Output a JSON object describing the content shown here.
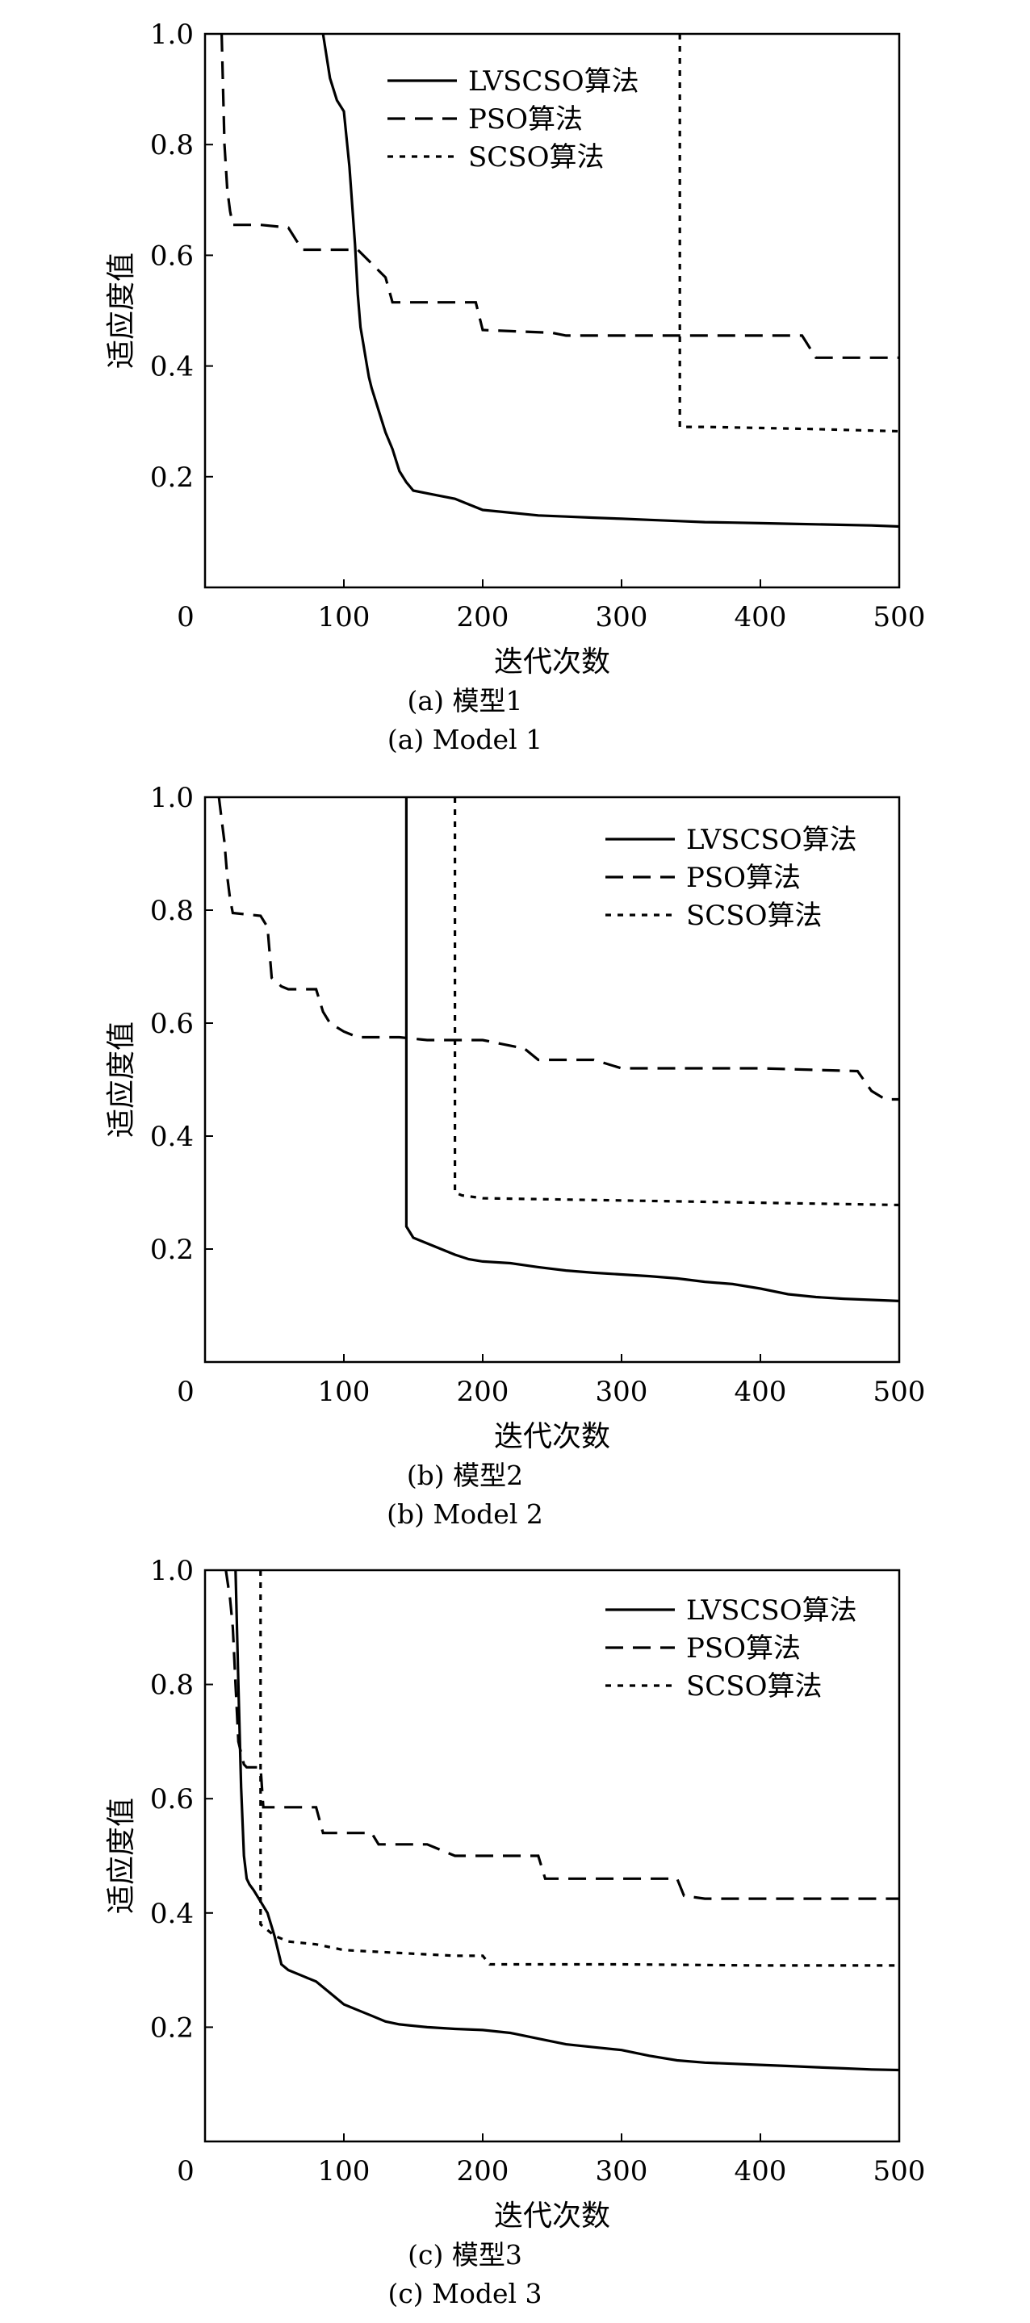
{
  "chart_data": [
    {
      "type": "line",
      "xlabel": "迭代次数",
      "ylabel": "适应度值",
      "caption_cn": "(a) 模型1",
      "caption_en": "(a) Model 1",
      "xlim": [
        0,
        500
      ],
      "ylim": [
        0,
        1.0
      ],
      "xticks": [
        0,
        100,
        200,
        300,
        400,
        500
      ],
      "yticks": [
        0.2,
        0.4,
        0.6,
        0.8,
        1.0
      ],
      "legend": "top-right",
      "series": [
        {
          "name": "LVSCSO算法",
          "style": "solid",
          "x": [
            85,
            90,
            95,
            100,
            104,
            108,
            110,
            112,
            114,
            116,
            118,
            120,
            125,
            130,
            135,
            140,
            145,
            150,
            160,
            170,
            180,
            190,
            200,
            220,
            240,
            260,
            280,
            300,
            320,
            340,
            360,
            380,
            400,
            420,
            440,
            460,
            480,
            500
          ],
          "y": [
            1.0,
            0.92,
            0.88,
            0.86,
            0.76,
            0.62,
            0.53,
            0.47,
            0.44,
            0.41,
            0.38,
            0.36,
            0.32,
            0.28,
            0.25,
            0.21,
            0.19,
            0.175,
            0.17,
            0.165,
            0.16,
            0.15,
            0.14,
            0.135,
            0.13,
            0.128,
            0.126,
            0.124,
            0.122,
            0.12,
            0.118,
            0.117,
            0.116,
            0.115,
            0.114,
            0.113,
            0.112,
            0.11
          ]
        },
        {
          "name": "PSO算法",
          "style": "dashed",
          "x": [
            12,
            14,
            16,
            18,
            20,
            40,
            60,
            70,
            110,
            130,
            135,
            150,
            170,
            195,
            200,
            250,
            260,
            430,
            440,
            500
          ],
          "y": [
            1.0,
            0.8,
            0.72,
            0.68,
            0.655,
            0.655,
            0.65,
            0.61,
            0.61,
            0.56,
            0.515,
            0.515,
            0.515,
            0.515,
            0.465,
            0.46,
            0.455,
            0.455,
            0.415,
            0.415
          ]
        },
        {
          "name": "SCSO算法",
          "style": "dotted",
          "x": [
            342,
            342,
            360,
            400,
            440,
            470,
            500
          ],
          "y": [
            1.0,
            0.29,
            0.29,
            0.288,
            0.286,
            0.284,
            0.282
          ]
        }
      ]
    },
    {
      "type": "line",
      "xlabel": "迭代次数",
      "ylabel": "适应度值",
      "caption_cn": "(b) 模型2",
      "caption_en": "(b) Model 2",
      "xlim": [
        0,
        500
      ],
      "ylim": [
        0,
        1.0
      ],
      "xticks": [
        0,
        100,
        200,
        300,
        400,
        500
      ],
      "yticks": [
        0.2,
        0.4,
        0.6,
        0.8,
        1.0
      ],
      "legend": "top-right",
      "series": [
        {
          "name": "LVSCSO算法",
          "style": "solid",
          "x": [
            145,
            145,
            150,
            160,
            170,
            180,
            190,
            200,
            220,
            240,
            260,
            280,
            300,
            320,
            340,
            360,
            380,
            400,
            420,
            440,
            460,
            480,
            500
          ],
          "y": [
            1.0,
            0.24,
            0.22,
            0.21,
            0.2,
            0.19,
            0.182,
            0.178,
            0.175,
            0.168,
            0.162,
            0.158,
            0.155,
            0.152,
            0.148,
            0.142,
            0.138,
            0.13,
            0.12,
            0.115,
            0.112,
            0.11,
            0.108
          ]
        },
        {
          "name": "PSO算法",
          "style": "dashed",
          "x": [
            10,
            12,
            14,
            16,
            18,
            20,
            40,
            45,
            48,
            55,
            60,
            80,
            85,
            90,
            100,
            110,
            140,
            160,
            200,
            230,
            240,
            280,
            300,
            400,
            470,
            480,
            490,
            500
          ],
          "y": [
            1.0,
            0.96,
            0.92,
            0.86,
            0.82,
            0.795,
            0.79,
            0.77,
            0.68,
            0.665,
            0.66,
            0.66,
            0.62,
            0.6,
            0.585,
            0.575,
            0.575,
            0.57,
            0.57,
            0.555,
            0.535,
            0.535,
            0.52,
            0.52,
            0.515,
            0.48,
            0.465,
            0.465
          ]
        },
        {
          "name": "SCSO算法",
          "style": "dotted",
          "x": [
            180,
            180,
            185,
            200,
            250,
            300,
            350,
            400,
            450,
            500
          ],
          "y": [
            1.0,
            0.3,
            0.295,
            0.29,
            0.288,
            0.286,
            0.284,
            0.282,
            0.28,
            0.278
          ]
        }
      ]
    },
    {
      "type": "line",
      "xlabel": "迭代次数",
      "ylabel": "适应度值",
      "caption_cn": "(c) 模型3",
      "caption_en": "(c) Model 3",
      "xlim": [
        0,
        500
      ],
      "ylim": [
        0,
        1.0
      ],
      "xticks": [
        0,
        100,
        200,
        300,
        400,
        500
      ],
      "yticks": [
        0.2,
        0.4,
        0.6,
        0.8,
        1.0
      ],
      "legend": "top-right",
      "series": [
        {
          "name": "LVSCSO算法",
          "style": "solid",
          "x": [
            22,
            24,
            26,
            28,
            30,
            32,
            35,
            40,
            45,
            50,
            55,
            60,
            70,
            80,
            90,
            100,
            110,
            120,
            130,
            140,
            160,
            180,
            200,
            220,
            240,
            260,
            280,
            300,
            320,
            340,
            360,
            380,
            400,
            420,
            440,
            460,
            480,
            500
          ],
          "y": [
            1.0,
            0.8,
            0.62,
            0.5,
            0.46,
            0.45,
            0.44,
            0.42,
            0.4,
            0.36,
            0.31,
            0.3,
            0.29,
            0.28,
            0.26,
            0.24,
            0.23,
            0.22,
            0.21,
            0.205,
            0.2,
            0.197,
            0.195,
            0.19,
            0.18,
            0.17,
            0.165,
            0.16,
            0.15,
            0.142,
            0.138,
            0.136,
            0.134,
            0.132,
            0.13,
            0.128,
            0.126,
            0.125
          ]
        },
        {
          "name": "PSO算法",
          "style": "dashed",
          "x": [
            15,
            18,
            20,
            22,
            24,
            26,
            28,
            30,
            35,
            40,
            42,
            80,
            85,
            120,
            125,
            160,
            180,
            240,
            245,
            340,
            345,
            360,
            400,
            500
          ],
          "y": [
            1.0,
            0.95,
            0.9,
            0.8,
            0.7,
            0.68,
            0.66,
            0.655,
            0.655,
            0.655,
            0.585,
            0.585,
            0.54,
            0.54,
            0.52,
            0.52,
            0.5,
            0.5,
            0.46,
            0.46,
            0.43,
            0.425,
            0.425,
            0.425
          ]
        },
        {
          "name": "SCSO算法",
          "style": "dotted",
          "x": [
            40,
            40,
            45,
            50,
            60,
            80,
            100,
            140,
            180,
            200,
            205,
            250,
            300,
            400,
            500
          ],
          "y": [
            1.0,
            0.38,
            0.37,
            0.36,
            0.35,
            0.345,
            0.335,
            0.33,
            0.325,
            0.325,
            0.31,
            0.31,
            0.31,
            0.308,
            0.308
          ]
        }
      ]
    }
  ]
}
